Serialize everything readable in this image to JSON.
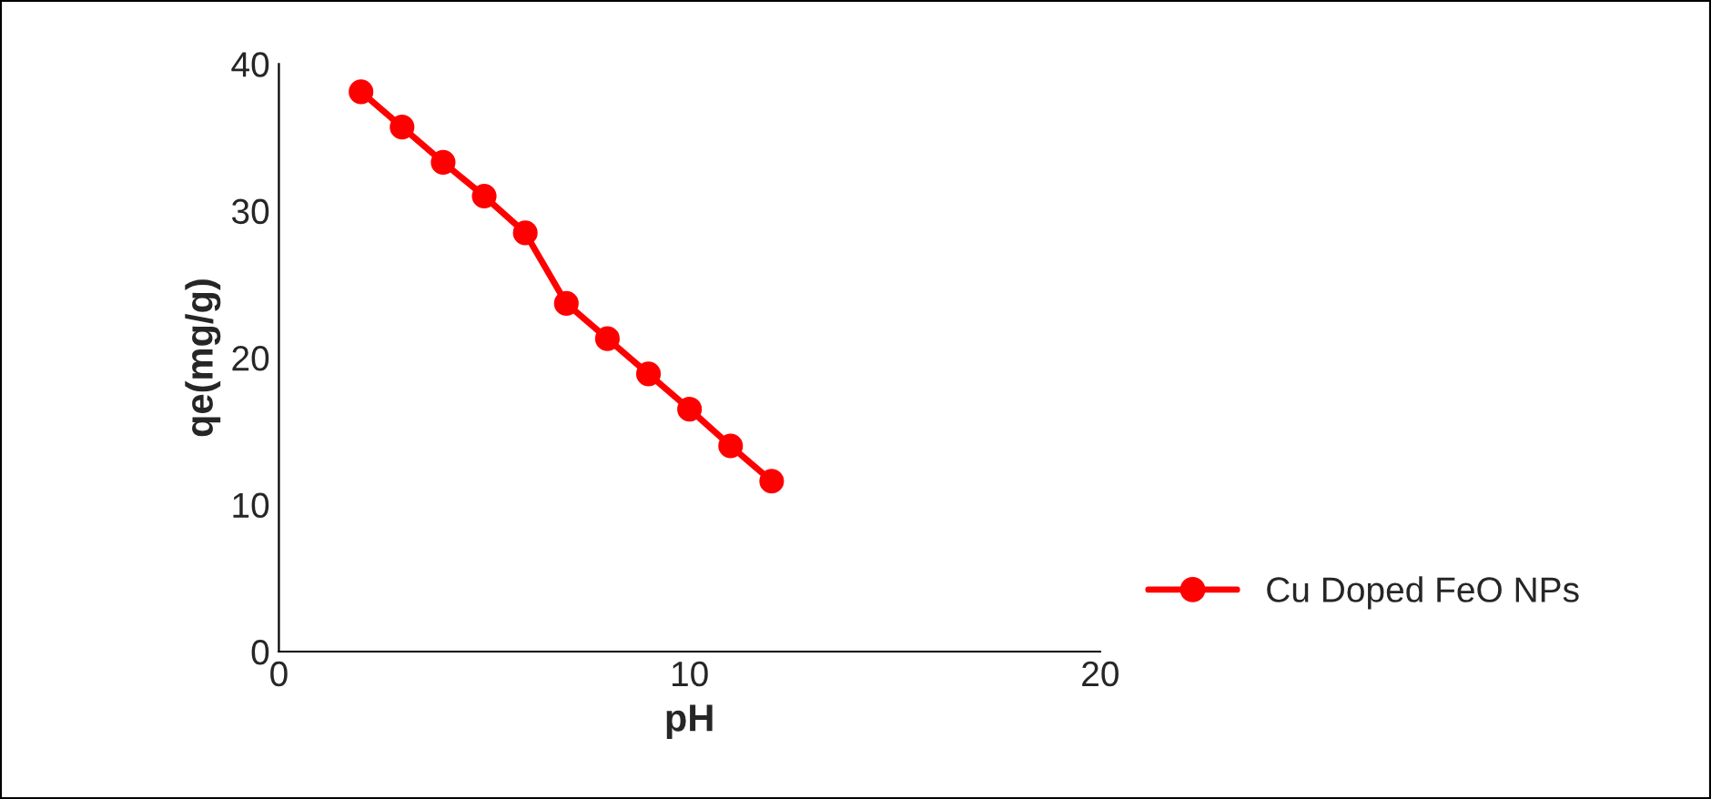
{
  "chart_data": {
    "type": "line",
    "xlabel": "pH",
    "ylabel": "qe(mg/g)",
    "x": [
      2,
      3,
      4,
      5,
      6,
      7,
      8,
      9,
      10,
      11,
      12
    ],
    "series": [
      {
        "name": "Cu Doped FeO NPs",
        "color": "#ff0000",
        "values": [
          38.1,
          35.7,
          33.3,
          31.0,
          28.5,
          23.7,
          21.3,
          18.9,
          16.5,
          14.0,
          11.6
        ]
      }
    ],
    "xlim": [
      0,
      20
    ],
    "xticks": [
      0,
      10,
      20
    ],
    "ylim": [
      0,
      40
    ],
    "yticks": [
      0,
      10,
      20,
      30,
      40
    ],
    "grid": false,
    "legend": "right",
    "marker": "circle",
    "line_style": "solid"
  }
}
